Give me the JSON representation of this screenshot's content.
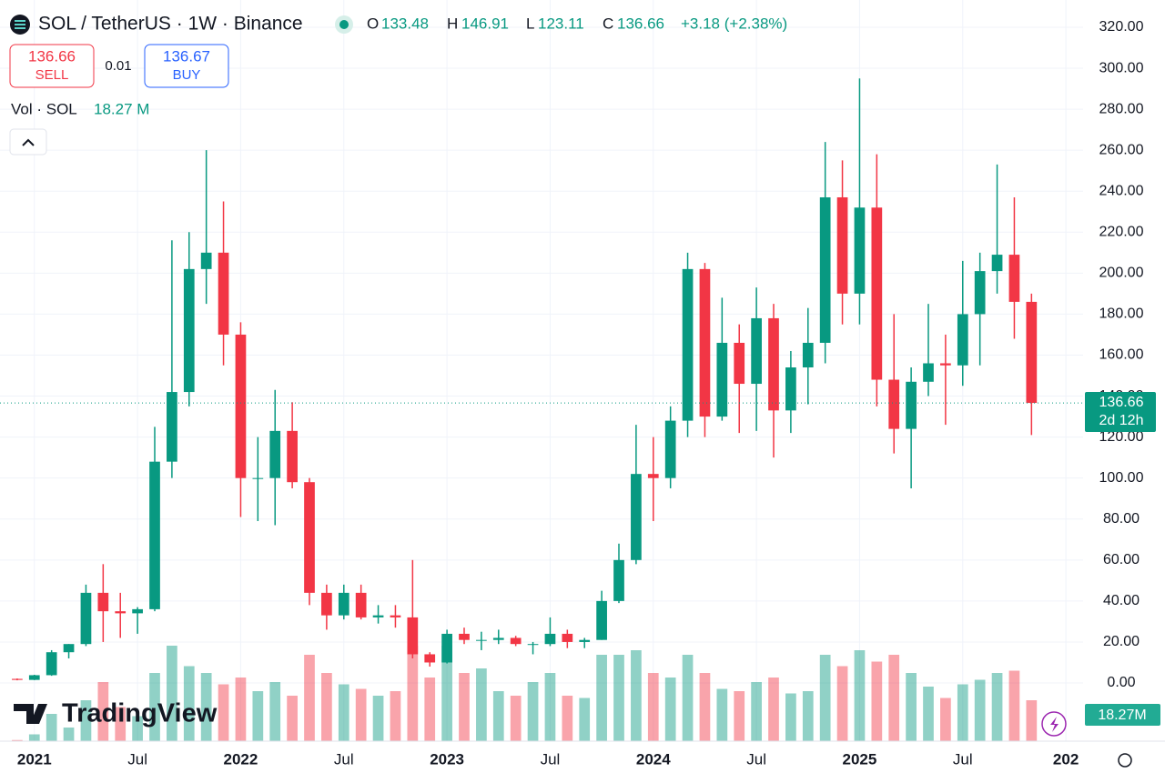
{
  "chart_data": {
    "type": "candlestick",
    "title": "SOL / TetherUS · 1W · Binance",
    "ohlc_header": {
      "o_label": "O",
      "o": 133.48,
      "h_label": "H",
      "h": 146.91,
      "l_label": "L",
      "l": 123.11,
      "c_label": "C",
      "c": 136.66,
      "change_label": "+3.18 (+2.38%)"
    },
    "sell": {
      "price": 136.66,
      "label": "SELL"
    },
    "spread": 0.01,
    "buy": {
      "price": 136.67,
      "label": "BUY"
    },
    "volume_legend": {
      "label": "Vol · SOL",
      "value_label": "18.27 M"
    },
    "last_price": 136.66,
    "countdown": "2d 12h",
    "last_volume_label": "18.27M",
    "brand": "TradingView",
    "up_color": "#089981",
    "down_color": "#f23645",
    "x": [
      "2020-12",
      "2021-01",
      "2021-02",
      "2021-03",
      "2021-04",
      "2021-05",
      "2021-06",
      "2021-07",
      "2021-08",
      "2021-09",
      "2021-10",
      "2021-11",
      "2021-12",
      "2022-01",
      "2022-02",
      "2022-03",
      "2022-04",
      "2022-05",
      "2022-06",
      "2022-07",
      "2022-08",
      "2022-09",
      "2022-10",
      "2022-11",
      "2022-12",
      "2023-01",
      "2023-02",
      "2023-03",
      "2023-04",
      "2023-05",
      "2023-06",
      "2023-07",
      "2023-08",
      "2023-09",
      "2023-10",
      "2023-11",
      "2023-12",
      "2024-01",
      "2024-02",
      "2024-03",
      "2024-04",
      "2024-05",
      "2024-06",
      "2024-07",
      "2024-08",
      "2024-09",
      "2024-10",
      "2024-11",
      "2024-12",
      "2025-01",
      "2025-02",
      "2025-03",
      "2025-04",
      "2025-05",
      "2025-06",
      "2025-07",
      "2025-08",
      "2025-09",
      "2025-10",
      "2025-11"
    ],
    "open": [
      2.0,
      1.5,
      3.8,
      15,
      19,
      44,
      35,
      34,
      36,
      108,
      142,
      202,
      210,
      170,
      100,
      100,
      123,
      98,
      44,
      33,
      44,
      32,
      33,
      32,
      14,
      10,
      24,
      21,
      21,
      22,
      19,
      19,
      24,
      20,
      21,
      40,
      60,
      102,
      100,
      128,
      202,
      130,
      166,
      146,
      178,
      133,
      154,
      166,
      237,
      190,
      232,
      148,
      124,
      147,
      156,
      155,
      180,
      201,
      209,
      186
    ],
    "high": [
      2.2,
      4.0,
      16,
      19,
      48,
      58,
      44,
      37,
      125,
      216,
      220,
      260,
      235,
      176,
      120,
      143,
      137,
      100,
      48,
      48,
      48,
      38,
      38,
      60,
      15,
      26,
      27,
      25,
      26,
      23,
      20,
      32,
      26,
      22,
      45,
      68,
      126,
      120,
      135,
      210,
      205,
      188,
      175,
      193,
      185,
      162,
      183,
      264,
      255,
      295,
      258,
      180,
      154,
      185,
      170,
      206,
      210,
      253,
      237,
      190
    ],
    "low": [
      1.3,
      1.4,
      3.5,
      12,
      18,
      20,
      22,
      24,
      35,
      100,
      135,
      185,
      155,
      81,
      79,
      77,
      95,
      38,
      26,
      31,
      31,
      29,
      27,
      12,
      8,
      9.5,
      19,
      16,
      19,
      18,
      14,
      18,
      17,
      17,
      21,
      39,
      58,
      79,
      95,
      120,
      120,
      128,
      122,
      123,
      110,
      122,
      136,
      156,
      175,
      175,
      135,
      112,
      95,
      140,
      126,
      145,
      155,
      190,
      168,
      121
    ],
    "close": [
      1.5,
      3.8,
      15,
      19,
      44,
      35,
      34,
      36,
      108,
      142,
      202,
      210,
      170,
      100,
      100,
      123,
      98,
      44,
      33,
      44,
      32,
      33,
      32,
      14,
      10,
      24,
      21,
      21,
      22,
      19,
      19,
      24,
      20,
      21,
      40,
      60,
      102,
      100,
      128,
      202,
      130,
      166,
      146,
      178,
      133,
      154,
      166,
      237,
      190,
      232,
      148,
      124,
      147,
      156,
      155,
      180,
      201,
      209,
      186,
      136.66
    ],
    "volume": [
      5,
      30,
      120,
      60,
      180,
      260,
      150,
      110,
      300,
      420,
      330,
      300,
      250,
      280,
      220,
      260,
      200,
      380,
      300,
      250,
      230,
      200,
      220,
      420,
      280,
      420,
      300,
      320,
      220,
      200,
      260,
      300,
      200,
      190,
      380,
      380,
      400,
      300,
      280,
      380,
      300,
      230,
      220,
      260,
      280,
      210,
      220,
      380,
      330,
      400,
      350,
      380,
      300,
      240,
      190,
      250,
      270,
      300,
      310,
      180
    ],
    "vlim": [
      0,
      600
    ],
    "xlim": [
      "2020-11",
      "2026-02"
    ],
    "xticks": [
      {
        "value": "2021-01",
        "label": "2021"
      },
      {
        "value": "2021-07",
        "label": "Jul"
      },
      {
        "value": "2022-01",
        "label": "2022"
      },
      {
        "value": "2022-07",
        "label": "Jul"
      },
      {
        "value": "2023-01",
        "label": "2023"
      },
      {
        "value": "2023-07",
        "label": "Jul"
      },
      {
        "value": "2024-01",
        "label": "2024"
      },
      {
        "value": "2024-07",
        "label": "Jul"
      },
      {
        "value": "2025-01",
        "label": "2025"
      },
      {
        "value": "2025-07",
        "label": "Jul"
      },
      {
        "value": "2026-01",
        "label": "202"
      }
    ],
    "ylim": [
      -28.4,
      333.3
    ],
    "yticks": [
      {
        "value": 0,
        "label": "0.00"
      },
      {
        "value": 20,
        "label": "20.00"
      },
      {
        "value": 40,
        "label": "40.00"
      },
      {
        "value": 60,
        "label": "60.00"
      },
      {
        "value": 80,
        "label": "80.00"
      },
      {
        "value": 100,
        "label": "100.00"
      },
      {
        "value": 120,
        "label": "120.00"
      },
      {
        "value": 140,
        "label": "140.00"
      },
      {
        "value": 160,
        "label": "160.00"
      },
      {
        "value": 180,
        "label": "180.00"
      },
      {
        "value": 200,
        "label": "200.00"
      },
      {
        "value": 220,
        "label": "220.00"
      },
      {
        "value": 240,
        "label": "240.00"
      },
      {
        "value": 260,
        "label": "260.00"
      },
      {
        "value": 280,
        "label": "280.00"
      },
      {
        "value": 300,
        "label": "300.00"
      },
      {
        "value": 320,
        "label": "320.00"
      }
    ],
    "grid": true
  }
}
